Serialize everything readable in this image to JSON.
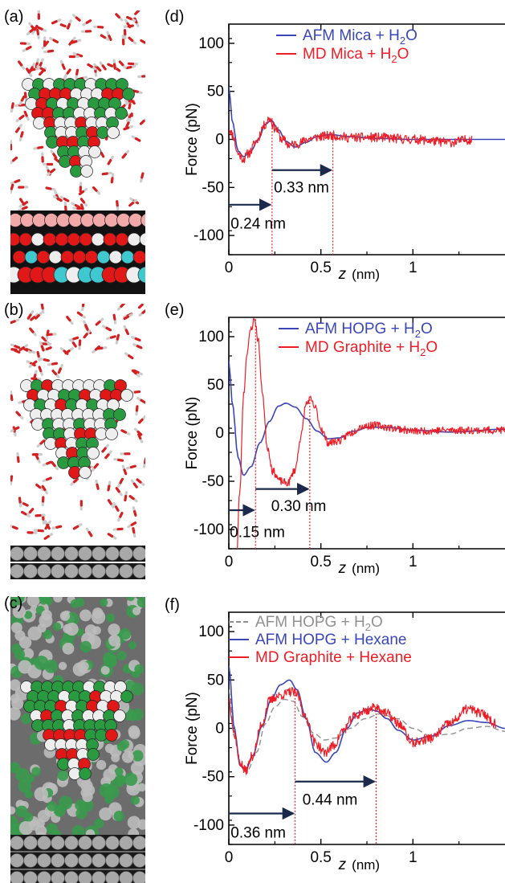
{
  "colors": {
    "afm_blue": "#3a46b8",
    "md_red": "#ee1c25",
    "afm_gray": "#909090",
    "vline_red": "#ee1c25",
    "arrow_navy": "#1b2a4a",
    "water_o": "#d42020",
    "water_h": "#e8e8e8",
    "atom_green": "#2a9a40",
    "atom_white": "#eeeeee",
    "atom_red": "#e01818",
    "mica_pink": "#f0a8a8",
    "mica_cyan": "#40c8d0",
    "graphite_gray": "#a8a8a8"
  },
  "images": [
    {
      "letter": "(a)",
      "content": "tip-in-water-on-mica"
    },
    {
      "letter": "(b)",
      "content": "tip-in-water-on-graphite"
    },
    {
      "letter": "(c)",
      "content": "tip-in-hexane-on-graphite"
    }
  ],
  "chart_data": [
    {
      "type": "line",
      "letter": "(d)",
      "xlabel_var": "z",
      "xlabel_unit": "(nm)",
      "ylabel": "Force (pN)",
      "xlim": [
        0,
        1.5
      ],
      "ylim": [
        -120,
        120
      ],
      "xticks": [
        {
          "value": 0,
          "label": "0"
        },
        {
          "value": 0.5,
          "label": "0.5"
        },
        {
          "value": 1,
          "label": "1"
        }
      ],
      "yticks": [
        {
          "value": 100,
          "label": "100"
        },
        {
          "value": 50,
          "label": "50"
        },
        {
          "value": 0,
          "label": "0"
        },
        {
          "value": -50,
          "label": "-50"
        },
        {
          "value": -100,
          "label": "-100"
        }
      ],
      "legend": [
        {
          "label": "AFM Mica + H",
          "sub": "2",
          "tail": "O",
          "color": "afm_blue",
          "dash": false
        },
        {
          "label": "MD Mica + H",
          "sub": "2",
          "tail": "O",
          "color": "md_red",
          "dash": false
        }
      ],
      "series": [
        {
          "name": "AFM Mica + H2O",
          "color": "afm_blue",
          "noise": 0,
          "seed": 0,
          "width": 1.6,
          "x": [
            0,
            0.02,
            0.05,
            0.08,
            0.12,
            0.16,
            0.2,
            0.23,
            0.27,
            0.31,
            0.36,
            0.42,
            0.48,
            0.55,
            0.65,
            0.8,
            1.0,
            1.2,
            1.5
          ],
          "y": [
            55,
            18,
            -12,
            -18,
            -12,
            0,
            16,
            20,
            10,
            -2,
            -8,
            -3,
            3,
            5,
            3,
            1,
            0,
            0,
            0
          ]
        },
        {
          "name": "MD Mica + H2O",
          "color": "md_red",
          "noise": 5,
          "seed": 11,
          "width": 1.2,
          "x": [
            0,
            0.02,
            0.05,
            0.08,
            0.11,
            0.15,
            0.19,
            0.22,
            0.25,
            0.29,
            0.33,
            0.38,
            0.44,
            0.5,
            0.56,
            0.65,
            0.8,
            1.0,
            1.2,
            1.32
          ],
          "y": [
            12,
            5,
            -15,
            -20,
            -14,
            -2,
            14,
            22,
            12,
            0,
            -6,
            -4,
            1,
            3,
            4,
            2,
            2,
            0,
            -3,
            0
          ]
        }
      ],
      "vlines": [
        0.235,
        0.565
      ],
      "vline_tops": [
        22,
        5
      ],
      "arrows": [
        {
          "x1": 0.0,
          "x2": 0.235,
          "y": -68,
          "label": "0.24 nm",
          "label_x": 0.01,
          "label_y": -88
        },
        {
          "x1": 0.235,
          "x2": 0.565,
          "y": -32,
          "label": "0.33 nm",
          "label_x": 0.245,
          "label_y": -50
        }
      ]
    },
    {
      "type": "line",
      "letter": "(e)",
      "xlabel_var": "z",
      "xlabel_unit": "(nm)",
      "ylabel": "Force (pN)",
      "xlim": [
        0,
        1.5
      ],
      "ylim": [
        -120,
        120
      ],
      "xticks": [
        {
          "value": 0,
          "label": "0"
        },
        {
          "value": 0.5,
          "label": "0.5"
        },
        {
          "value": 1,
          "label": "1"
        }
      ],
      "yticks": [
        {
          "value": 100,
          "label": "100"
        },
        {
          "value": 50,
          "label": "50"
        },
        {
          "value": 0,
          "label": "0"
        },
        {
          "value": -50,
          "label": "-50"
        },
        {
          "value": -100,
          "label": "-100"
        }
      ],
      "legend": [
        {
          "label": "AFM HOPG + H",
          "sub": "2",
          "tail": "O",
          "color": "afm_blue",
          "dash": false
        },
        {
          "label": "MD Graphite + H",
          "sub": "2",
          "tail": "O",
          "color": "md_red",
          "dash": false
        }
      ],
      "series": [
        {
          "name": "AFM HOPG + H2O",
          "color": "afm_blue",
          "noise": 0,
          "seed": 0,
          "width": 1.6,
          "x": [
            0,
            0.02,
            0.05,
            0.08,
            0.12,
            0.17,
            0.22,
            0.27,
            0.31,
            0.36,
            0.42,
            0.48,
            0.54,
            0.6,
            0.68,
            0.76,
            0.85,
            1.0,
            1.2,
            1.5
          ],
          "y": [
            75,
            30,
            -25,
            -44,
            -35,
            -10,
            12,
            28,
            31,
            27,
            15,
            2,
            -6,
            -5,
            2,
            6,
            6,
            3,
            1,
            4
          ]
        },
        {
          "name": "MD Graphite + H2O",
          "color": "md_red",
          "noise": 4,
          "seed": 23,
          "width": 1.2,
          "x": [
            0.04,
            0.06,
            0.08,
            0.1,
            0.12,
            0.14,
            0.16,
            0.18,
            0.21,
            0.24,
            0.28,
            0.32,
            0.36,
            0.39,
            0.42,
            0.44,
            0.47,
            0.5,
            0.54,
            0.6,
            0.66,
            0.72,
            0.8,
            0.9,
            1.0,
            1.2,
            1.5
          ],
          "y": [
            -140,
            -60,
            40,
            85,
            108,
            118,
            96,
            45,
            -15,
            -40,
            -50,
            -52,
            -38,
            -5,
            30,
            35,
            26,
            5,
            -10,
            -8,
            0,
            7,
            8,
            5,
            2,
            3,
            3
          ]
        }
      ],
      "vlines": [
        0.145,
        0.44
      ],
      "vline_tops": [
        118,
        35
      ],
      "arrows": [
        {
          "x1": 0.0,
          "x2": 0.145,
          "y": -80,
          "label": "0.15 nm",
          "label_x": 0.005,
          "label_y": -103
        },
        {
          "x1": 0.145,
          "x2": 0.44,
          "y": -58,
          "label": "0.30 nm",
          "label_x": 0.23,
          "label_y": -76
        }
      ]
    },
    {
      "type": "line",
      "letter": "(f)",
      "xlabel_var": "z",
      "xlabel_unit": "(nm)",
      "ylabel": "Force (pN)",
      "xlim": [
        0,
        1.5
      ],
      "ylim": [
        -120,
        120
      ],
      "xticks": [
        {
          "value": 0,
          "label": "0"
        },
        {
          "value": 0.5,
          "label": "0.5"
        },
        {
          "value": 1,
          "label": "1"
        }
      ],
      "yticks": [
        {
          "value": 100,
          "label": "100"
        },
        {
          "value": 50,
          "label": "50"
        },
        {
          "value": 0,
          "label": "0"
        },
        {
          "value": -50,
          "label": "-50"
        },
        {
          "value": -100,
          "label": "-100"
        }
      ],
      "legend": [
        {
          "label": "AFM HOPG + H",
          "sub": "2",
          "tail": "O",
          "color": "afm_gray",
          "dash": true
        },
        {
          "label": "AFM HOPG + Hexane",
          "sub": "",
          "tail": "",
          "color": "afm_blue",
          "dash": false
        },
        {
          "label": "MD Graphite + Hexane",
          "sub": "",
          "tail": "",
          "color": "md_red",
          "dash": false
        }
      ],
      "series": [
        {
          "name": "AFM HOPG + H2O",
          "color": "afm_gray",
          "noise": 0,
          "seed": 0,
          "width": 1.4,
          "dash": true,
          "x": [
            0,
            0.03,
            0.07,
            0.1,
            0.15,
            0.2,
            0.25,
            0.3,
            0.35,
            0.4,
            0.46,
            0.52,
            0.58,
            0.66,
            0.74,
            0.82,
            0.92,
            1.0,
            1.1,
            1.2,
            1.3,
            1.4,
            1.5
          ],
          "y": [
            40,
            -10,
            -40,
            -44,
            -25,
            5,
            22,
            30,
            28,
            12,
            -5,
            -12,
            -10,
            0,
            10,
            15,
            10,
            0,
            -8,
            -6,
            0,
            2,
            -3
          ]
        },
        {
          "name": "AFM HOPG + Hexane",
          "color": "afm_blue",
          "noise": 0,
          "seed": 0,
          "width": 1.6,
          "x": [
            0,
            0.03,
            0.06,
            0.09,
            0.13,
            0.18,
            0.23,
            0.28,
            0.33,
            0.37,
            0.42,
            0.47,
            0.53,
            0.58,
            0.64,
            0.7,
            0.76,
            0.8,
            0.86,
            0.92,
            1.0,
            1.1,
            1.2,
            1.3,
            1.4,
            1.5
          ],
          "y": [
            65,
            0,
            -38,
            -44,
            -28,
            2,
            30,
            45,
            50,
            40,
            10,
            -25,
            -35,
            -25,
            0,
            16,
            20,
            18,
            10,
            -2,
            -12,
            -8,
            3,
            8,
            6,
            0
          ]
        },
        {
          "name": "MD Graphite + Hexane",
          "color": "md_red",
          "noise": 5,
          "seed": 37,
          "width": 1.2,
          "x": [
            0,
            0.03,
            0.06,
            0.09,
            0.13,
            0.18,
            0.22,
            0.26,
            0.3,
            0.34,
            0.37,
            0.42,
            0.47,
            0.52,
            0.57,
            0.62,
            0.68,
            0.74,
            0.8,
            0.86,
            0.92,
            1.0,
            1.1,
            1.2,
            1.3,
            1.38,
            1.45
          ],
          "y": [
            30,
            -5,
            -35,
            -44,
            -28,
            5,
            28,
            33,
            35,
            38,
            35,
            10,
            -15,
            -25,
            -18,
            -2,
            12,
            18,
            22,
            15,
            5,
            -15,
            -10,
            5,
            20,
            15,
            5
          ]
        }
      ],
      "vlines": [
        0.36,
        0.8
      ],
      "vline_tops": [
        38,
        22
      ],
      "arrows": [
        {
          "x1": 0.0,
          "x2": 0.36,
          "y": -88,
          "label": "0.36 nm",
          "label_x": 0.01,
          "label_y": -108
        },
        {
          "x1": 0.36,
          "x2": 0.8,
          "y": -55,
          "label": "0.44 nm",
          "label_x": 0.4,
          "label_y": -74
        }
      ]
    }
  ]
}
